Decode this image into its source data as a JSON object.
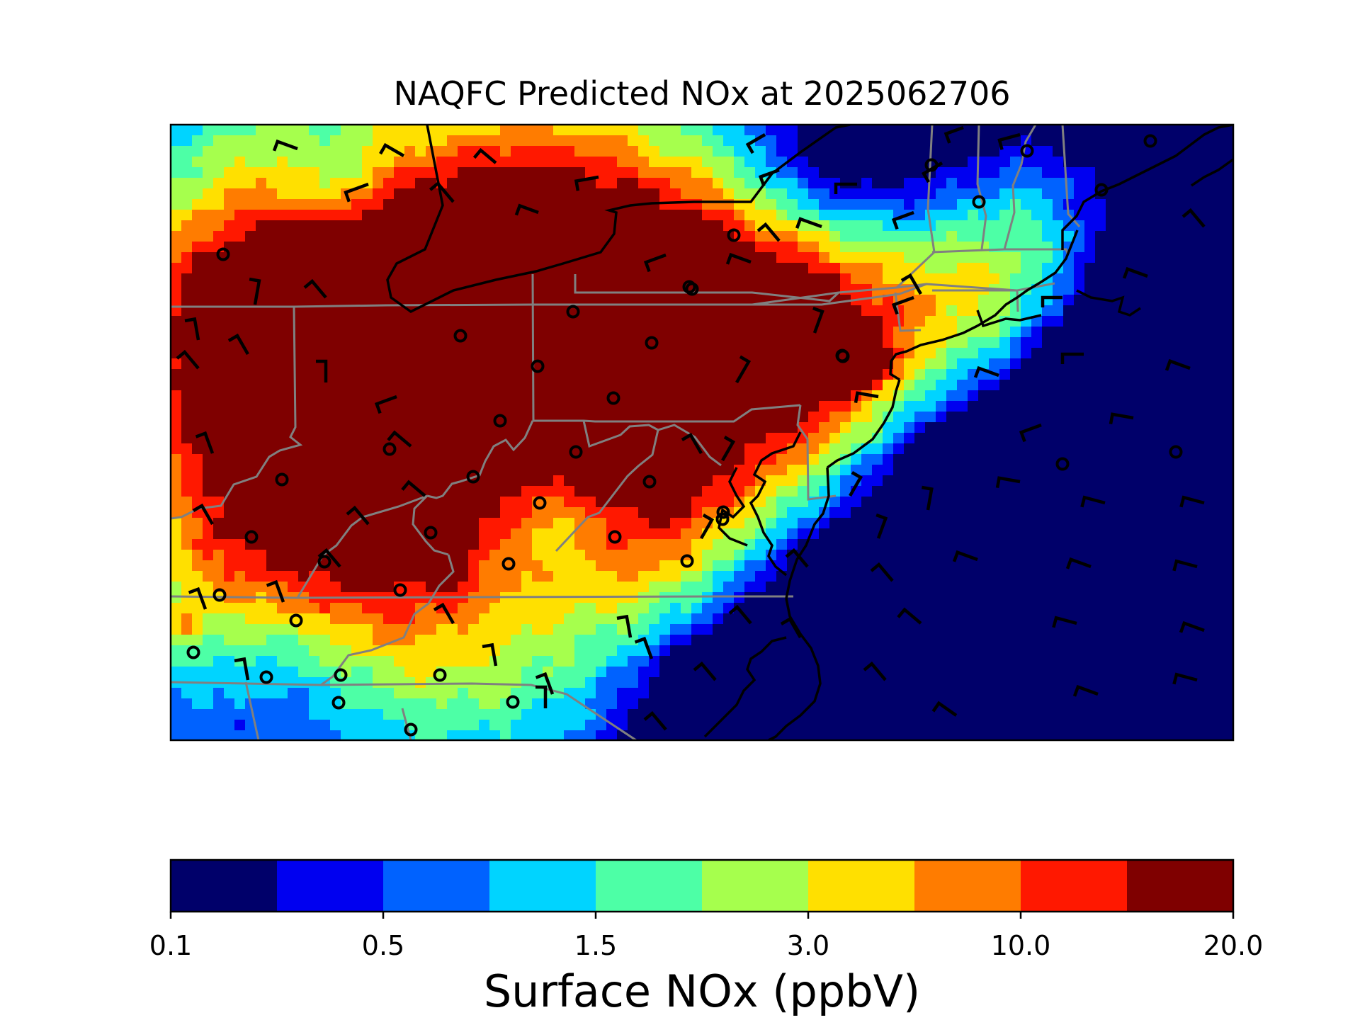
{
  "title": "NAQFC Predicted NOx at 2025062706",
  "colorbar": {
    "label": "Surface NOx (ppbV)",
    "tick_labels": [
      "0.1",
      "0.5",
      "1.5",
      "3.0",
      "10.0",
      "20.0"
    ],
    "bin_colors": [
      "#00006a",
      "#0000f0",
      "#0062ff",
      "#00d4ff",
      "#4dffa6",
      "#a6ff4d",
      "#ffe000",
      "#ff7c00",
      "#ff1800",
      "#7f0000"
    ]
  },
  "map": {
    "region": "US East Coast / Mid-Atlantic",
    "layers": [
      "surface NOx concentration grid",
      "wind barbs",
      "monitoring stations",
      "coastlines",
      "state boundaries"
    ],
    "coastline_color": "#000000",
    "state_border_color": "#808080",
    "station_marker": "open-circle",
    "wind_symbol": "wind-barb"
  }
}
